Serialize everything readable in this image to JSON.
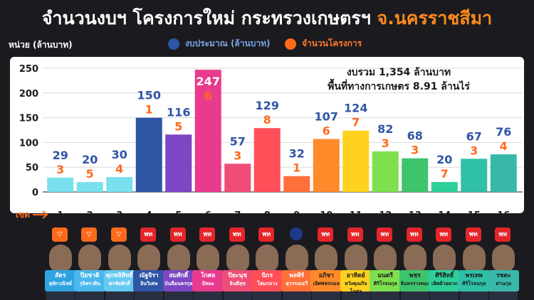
{
  "title": {
    "main": "จำนวนงบฯ โครงการใหม่ กระทรวงเกษตรฯ",
    "highlight": "จ.นครราชสีมา"
  },
  "unit_label": "หน่วย (ล้านบาท)",
  "legend": {
    "budget": "งบประมาณ (ล้านบาท)",
    "count": "จำนวนโครงการ"
  },
  "colors": {
    "budget_label": "#2f55a5",
    "count_label": "#ff6a1a",
    "axis": "#ffffff",
    "text_dark": "#1a1a1a"
  },
  "summary": {
    "line1": "งบรวม 1,354 ล้านบาท",
    "line2": "พื้นที่ทางการเกษตร  8.91 ล้านไร่"
  },
  "district_label": "เขต",
  "chart_data": {
    "type": "bar",
    "categories": [
      "1",
      "2",
      "3",
      "4",
      "5",
      "6",
      "7",
      "8",
      "9",
      "10",
      "11",
      "12",
      "13",
      "14",
      "15",
      "16"
    ],
    "series": [
      {
        "name": "งบประมาณ (ล้านบาท)",
        "values": [
          29,
          20,
          30,
          150,
          116,
          247,
          57,
          129,
          32,
          107,
          124,
          82,
          68,
          20,
          67,
          76
        ]
      },
      {
        "name": "จำนวนโครงการ",
        "values": [
          3,
          5,
          4,
          1,
          5,
          6,
          3,
          8,
          1,
          6,
          7,
          3,
          3,
          7,
          3,
          4
        ]
      }
    ],
    "bar_colors": [
      "#79e0ee",
      "#79e0ee",
      "#79e0ee",
      "#2f55a5",
      "#7c46c4",
      "#e83b8e",
      "#ef4d77",
      "#ff4e58",
      "#ff6f3a",
      "#ff8a2a",
      "#ffd21f",
      "#7ee04e",
      "#3ec46d",
      "#2fcf9a",
      "#2fc0a6",
      "#39b8aa"
    ],
    "ylim": [
      0,
      250
    ],
    "yticks": [
      0,
      50,
      100,
      150,
      200,
      250
    ],
    "grid": true
  },
  "people": [
    {
      "party": "▽",
      "party_type": "tri",
      "name1": "สัตร",
      "name2": "สุทักวณิชย์",
      "plate_bg": "#2ea3e0",
      "plate_fg": "#ffffff"
    },
    {
      "party": "▽",
      "party_type": "tri",
      "name1": "ปิยชาติ",
      "name2": "รุจิพรวศิน",
      "plate_bg": "#4ab8ec",
      "plate_fg": "#ffffff"
    },
    {
      "party": "▽",
      "party_type": "tri",
      "name1": "ศุภชลิสิทธิ์",
      "name2": "พรชัยศักดิ์",
      "plate_bg": "#66c9f0",
      "plate_fg": "#ffffff"
    },
    {
      "party": "พท",
      "party_type": "ptt",
      "name1": "ณัฐจิรา",
      "name2": "อินวิเศษ",
      "plate_bg": "#2f55a5",
      "plate_fg": "#ffffff"
    },
    {
      "party": "พท",
      "party_type": "ptt",
      "name1": "สมศักดิ์",
      "name2": "บันลือนครกุล",
      "plate_bg": "#7c46c4",
      "plate_fg": "#ffffff"
    },
    {
      "party": "พท",
      "party_type": "ptt",
      "name1": "โกศล",
      "name2": "ปัทมะ",
      "plate_bg": "#e83b8e",
      "plate_fg": "#ffffff"
    },
    {
      "party": "พท",
      "party_type": "ptt",
      "name1": "ปิยะนุช",
      "name2": "ยินดีสุข",
      "plate_bg": "#ef4d77",
      "plate_fg": "#ffffff"
    },
    {
      "party": "พท",
      "party_type": "ptt",
      "name1": "นิกร",
      "name2": "โสมกลาง",
      "plate_bg": "#ff4e58",
      "plate_fg": "#ffffff"
    },
    {
      "party": "ภูมิใจไทย",
      "party_type": "bjt",
      "name1": "พลพีร์",
      "name2": "สุวรรณฉวี",
      "plate_bg": "#ff6f3a",
      "plate_fg": "#ffffff"
    },
    {
      "party": "พท",
      "party_type": "ptt",
      "name1": "อภิชา",
      "name2": "เลิศพชรกมล",
      "plate_bg": "#ff8a2a",
      "plate_fg": "#1a1a1a"
    },
    {
      "party": "พท",
      "party_type": "ptt",
      "name1": "อาทิตย์",
      "name2": "หวังคุณกิจโกศล",
      "plate_bg": "#ffd21f",
      "plate_fg": "#1a1a1a"
    },
    {
      "party": "พท",
      "party_type": "ptt",
      "name1": "มนตรี",
      "name2": "ศิริโรจนกุล",
      "plate_bg": "#7ee04e",
      "plate_fg": "#1a1a1a"
    },
    {
      "party": "พท",
      "party_type": "ptt",
      "name1": "พชร",
      "name2": "จันทรรวงทอง",
      "plate_bg": "#3ec46d",
      "plate_fg": "#1a1a1a"
    },
    {
      "party": "พท",
      "party_type": "ptt",
      "name1": "ศิริสิทธิ์",
      "name2": "เลิศด้วยลาภ",
      "plate_bg": "#2fcf9a",
      "plate_fg": "#1a1a1a"
    },
    {
      "party": "พท",
      "party_type": "ptt",
      "name1": "พรเทพ",
      "name2": "ศิริโรจนกุล",
      "plate_bg": "#2fc0a6",
      "plate_fg": "#1a1a1a"
    },
    {
      "party": "พท",
      "party_type": "ptt",
      "name1": "รชตะ",
      "name2": "ด่านกุล",
      "plate_bg": "#39b8aa",
      "plate_fg": "#1a1a1a"
    }
  ]
}
